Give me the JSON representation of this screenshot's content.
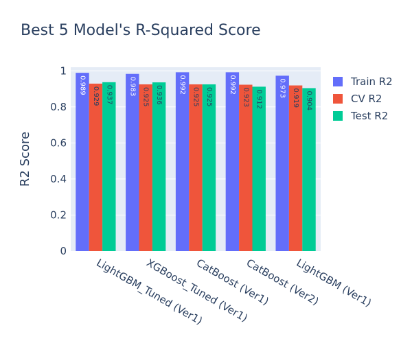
{
  "chart_data": {
    "type": "bar",
    "title": "Best 5 Model's R-Squared Score",
    "xlabel": "",
    "ylabel": "R2 Score",
    "ylim": [
      0,
      1.02
    ],
    "yticks": [
      "0",
      "0.2",
      "0.4",
      "0.6",
      "0.8",
      "1"
    ],
    "grid": true,
    "legend_position": "right",
    "categories": [
      "LightGBM_Tuned (Ver1)",
      "XGBoost_Tuned (Ver1)",
      "CatBoost (Ver1)",
      "CatBoost (Ver2)",
      "LightGBM (Ver1)"
    ],
    "series": [
      {
        "name": "Train R2",
        "color": "#636efa",
        "label_color": "#ffffff",
        "values": [
          0.989,
          0.983,
          0.992,
          0.992,
          0.973
        ],
        "labels": [
          "0.989",
          "0.983",
          "0.992",
          "0.992",
          "0.973"
        ]
      },
      {
        "name": "CV R2",
        "color": "#ef553b",
        "label_color": "#2a3f5f",
        "values": [
          0.929,
          0.925,
          0.925,
          0.923,
          0.919
        ],
        "labels": [
          "0.929",
          "0.925",
          "0.925",
          "0.923",
          "0.919"
        ]
      },
      {
        "name": "Test R2",
        "color": "#00cc96",
        "label_color": "#2a3f5f",
        "values": [
          0.937,
          0.936,
          0.925,
          0.912,
          0.904
        ],
        "labels": [
          "0.937",
          "0.936",
          "0.925",
          "0.912",
          "0.904"
        ]
      }
    ]
  }
}
